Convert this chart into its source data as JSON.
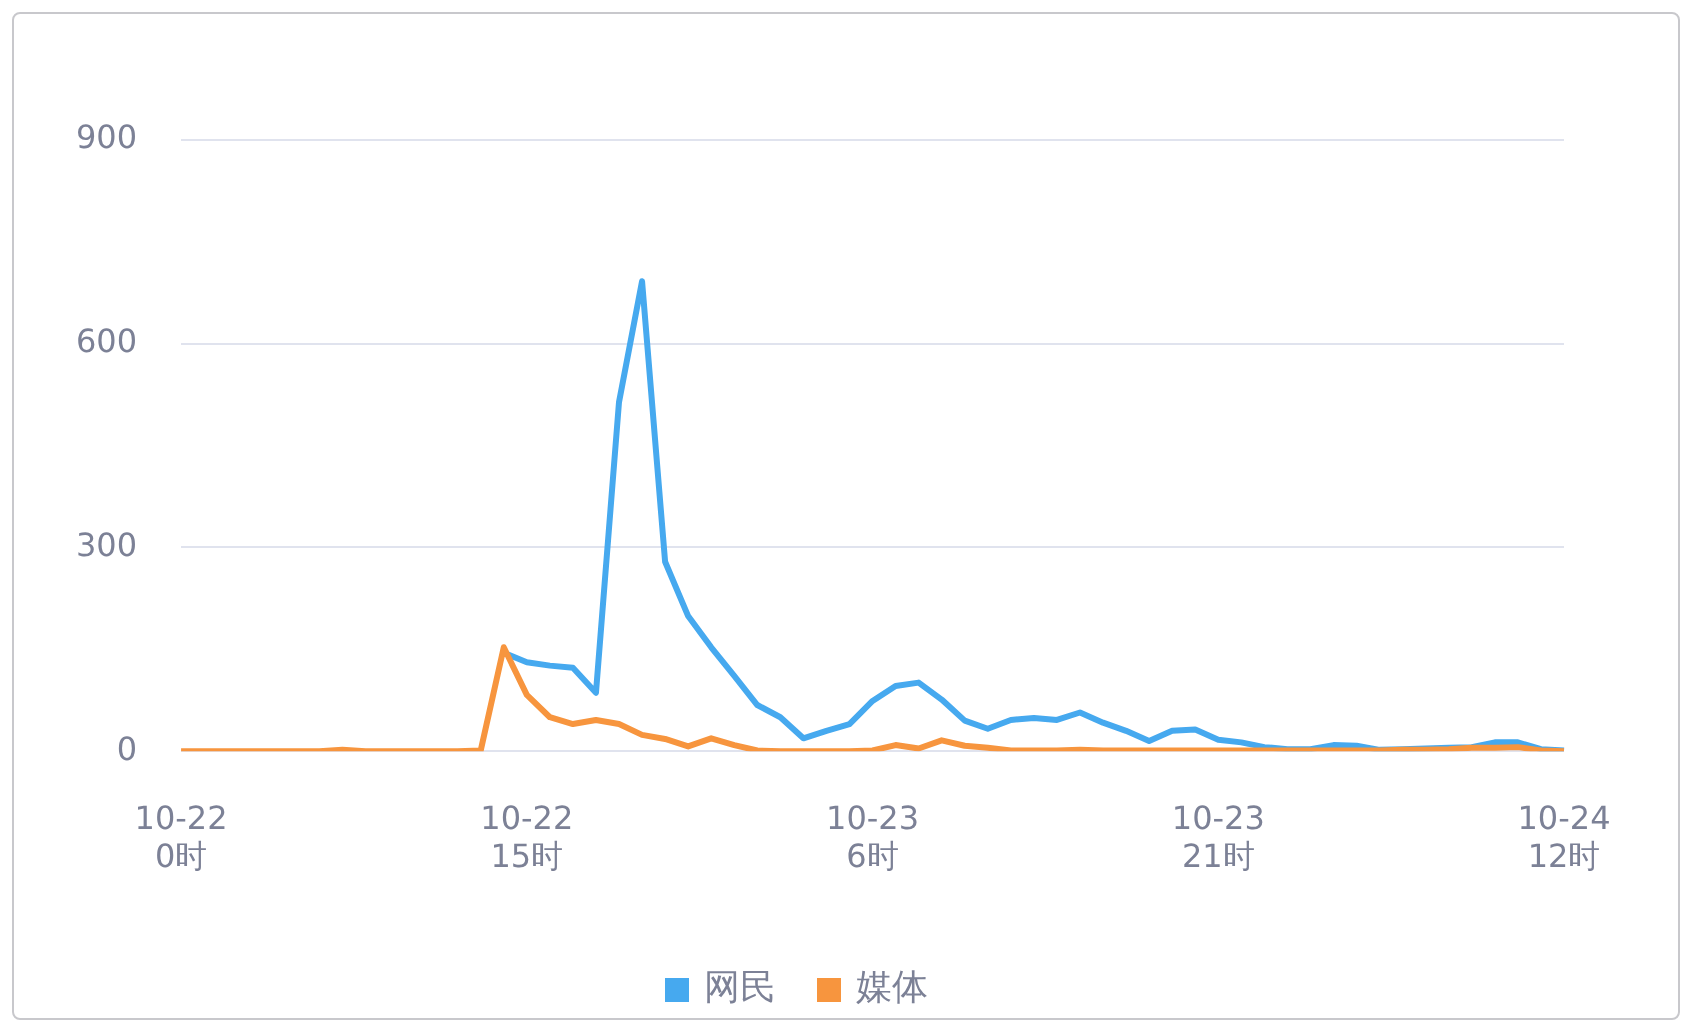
{
  "chart_data": {
    "type": "line",
    "categories": [
      "10-22 0时",
      null,
      null,
      null,
      null,
      null,
      null,
      null,
      null,
      null,
      null,
      null,
      null,
      null,
      null,
      "10-22 15时",
      null,
      null,
      null,
      null,
      null,
      null,
      null,
      null,
      null,
      null,
      null,
      null,
      null,
      null,
      "10-23 6时",
      null,
      null,
      null,
      null,
      null,
      null,
      null,
      null,
      null,
      null,
      null,
      null,
      null,
      null,
      "10-23 21时",
      null,
      null,
      null,
      null,
      null,
      null,
      null,
      null,
      null,
      null,
      null,
      null,
      null,
      null,
      "10-24 12时"
    ],
    "series": [
      {
        "name": "网民",
        "color": "#46a9ef",
        "values": [
          null,
          null,
          null,
          null,
          null,
          null,
          null,
          null,
          null,
          null,
          null,
          null,
          null,
          null,
          145,
          131,
          126,
          123,
          86,
          514,
          692,
          279,
          199,
          153,
          111,
          68,
          50,
          19,
          30,
          40,
          74,
          96,
          101,
          76,
          45,
          33,
          46,
          49,
          46,
          57,
          42,
          30,
          15,
          30,
          32,
          17,
          13,
          6,
          3,
          3,
          9,
          8,
          2,
          3,
          4,
          5,
          6,
          13,
          13,
          3,
          1
        ]
      },
      {
        "name": "媒体",
        "color": "#f7953e",
        "values": [
          0,
          0,
          0,
          0,
          0,
          0,
          0,
          2,
          0,
          0,
          0,
          0,
          0,
          1,
          153,
          83,
          50,
          40,
          46,
          40,
          24,
          18,
          7,
          19,
          9,
          1,
          0,
          0,
          0,
          0,
          1,
          9,
          4,
          16,
          8,
          5,
          1,
          1,
          1,
          2,
          1,
          1,
          1,
          1,
          1,
          1,
          1,
          1,
          1,
          1,
          1,
          1,
          1,
          2,
          2,
          3,
          5,
          5,
          6,
          1,
          0
        ]
      }
    ],
    "ylim": [
      0,
      900
    ],
    "yticks": [
      0,
      300,
      600,
      900
    ],
    "grid": "y",
    "legend": "bottom",
    "marker": "none",
    "line_style": "solid"
  }
}
